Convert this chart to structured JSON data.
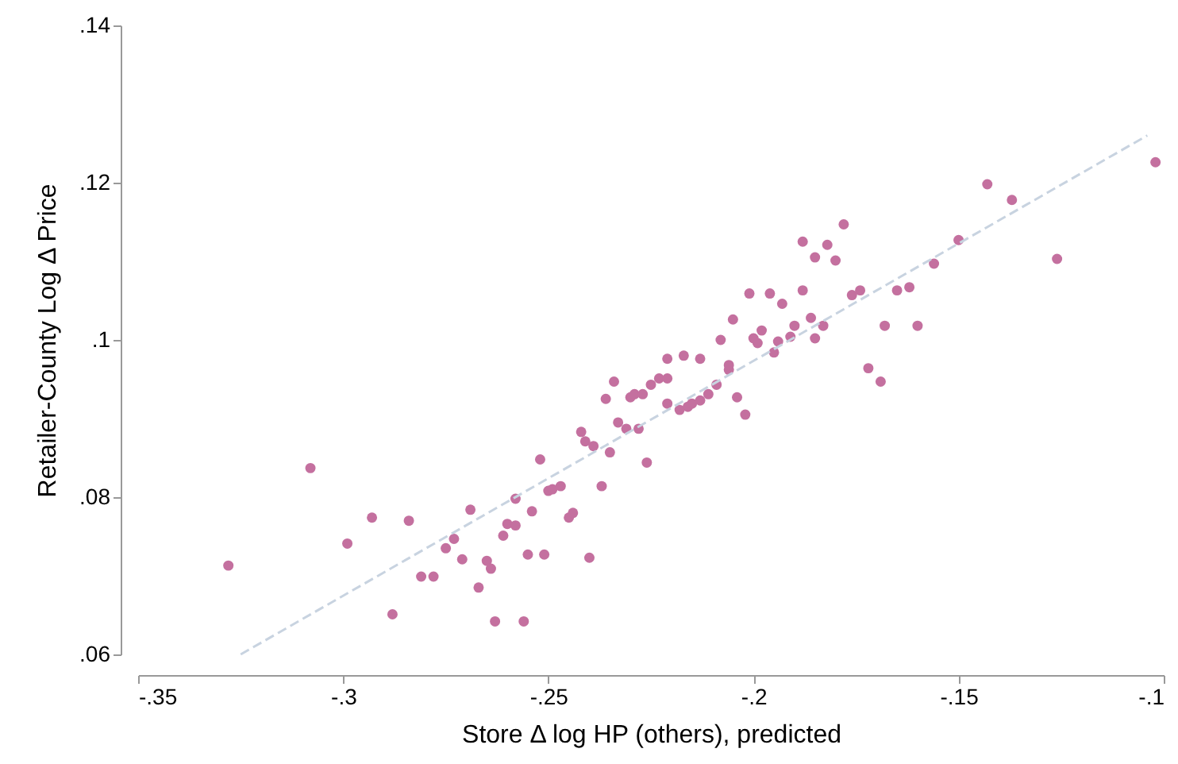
{
  "chart_data": {
    "type": "scatter",
    "xlabel": "Store Δ log HP (others), predicted",
    "ylabel": "Retailer-County Log Δ Price",
    "xlim": [
      -0.35,
      -0.1
    ],
    "ylim": [
      0.06,
      0.14
    ],
    "xticks": [
      {
        "value": -0.35,
        "label": "-.35"
      },
      {
        "value": -0.3,
        "label": "-.3"
      },
      {
        "value": -0.25,
        "label": "-.25"
      },
      {
        "value": -0.2,
        "label": "-.2"
      },
      {
        "value": -0.15,
        "label": "-.15"
      },
      {
        "value": -0.1,
        "label": "-.1"
      }
    ],
    "yticks": [
      {
        "value": 0.06,
        "label": ".06"
      },
      {
        "value": 0.08,
        "label": ".08"
      },
      {
        "value": 0.1,
        "label": ".1"
      },
      {
        "value": 0.12,
        "label": ".12"
      },
      {
        "value": 0.14,
        "label": ".14"
      }
    ],
    "grid": false,
    "marker": "circle",
    "series": [
      {
        "color": "#c4709f",
        "x": [
          -0.328,
          -0.308,
          -0.299,
          -0.293,
          -0.288,
          -0.284,
          -0.281,
          -0.278,
          -0.275,
          -0.273,
          -0.271,
          -0.269,
          -0.267,
          -0.265,
          -0.264,
          -0.263,
          -0.261,
          -0.26,
          -0.258,
          -0.258,
          -0.256,
          -0.255,
          -0.254,
          -0.252,
          -0.251,
          -0.25,
          -0.249,
          -0.247,
          -0.245,
          -0.244,
          -0.242,
          -0.241,
          -0.24,
          -0.239,
          -0.237,
          -0.236,
          -0.235,
          -0.234,
          -0.233,
          -0.231,
          -0.23,
          -0.229,
          -0.228,
          -0.227,
          -0.226,
          -0.225,
          -0.223,
          -0.221,
          -0.221,
          -0.221,
          -0.218,
          -0.217,
          -0.216,
          -0.215,
          -0.213,
          -0.213,
          -0.211,
          -0.209,
          -0.208,
          -0.206,
          -0.206,
          -0.205,
          -0.204,
          -0.202,
          -0.201,
          -0.2,
          -0.199,
          -0.198,
          -0.196,
          -0.195,
          -0.194,
          -0.193,
          -0.191,
          -0.19,
          -0.188,
          -0.188,
          -0.186,
          -0.185,
          -0.185,
          -0.183,
          -0.182,
          -0.18,
          -0.178,
          -0.176,
          -0.174,
          -0.172,
          -0.169,
          -0.168,
          -0.165,
          -0.162,
          -0.16,
          -0.156,
          -0.15,
          -0.143,
          -0.137,
          -0.126,
          -0.102
        ],
        "values": [
          0.0713,
          0.0837,
          0.0741,
          0.0774,
          0.0651,
          0.077,
          0.0699,
          0.0699,
          0.0735,
          0.0747,
          0.0721,
          0.0784,
          0.0685,
          0.0719,
          0.0709,
          0.0642,
          0.0751,
          0.0766,
          0.0764,
          0.0798,
          0.0642,
          0.0727,
          0.0782,
          0.0848,
          0.0727,
          0.0808,
          0.081,
          0.0814,
          0.0774,
          0.078,
          0.0883,
          0.0871,
          0.0723,
          0.0865,
          0.0814,
          0.0925,
          0.0857,
          0.0947,
          0.0895,
          0.0887,
          0.0927,
          0.0931,
          0.0887,
          0.0931,
          0.0844,
          0.0943,
          0.0951,
          0.0951,
          0.0919,
          0.0976,
          0.0911,
          0.098,
          0.0915,
          0.0919,
          0.0976,
          0.0923,
          0.0931,
          0.0943,
          0.1,
          0.0962,
          0.0968,
          0.1026,
          0.0927,
          0.0905,
          0.1059,
          0.1002,
          0.0996,
          0.1012,
          0.1059,
          0.0984,
          0.0998,
          0.1046,
          0.1004,
          0.1018,
          0.1125,
          0.1063,
          0.1028,
          0.1105,
          0.1002,
          0.1018,
          0.1121,
          0.1101,
          0.1147,
          0.1057,
          0.1063,
          0.0964,
          0.0947,
          0.1018,
          0.1063,
          0.1067,
          0.1018,
          0.1097,
          0.1127,
          0.1198,
          0.1178,
          0.1103,
          0.1226
        ]
      },
      {
        "type": "line",
        "marker": "none",
        "color": "#c8d3e0",
        "line_style": "dashed",
        "x": [
          -0.325,
          -0.104
        ],
        "values": [
          0.06,
          0.126
        ]
      }
    ]
  }
}
